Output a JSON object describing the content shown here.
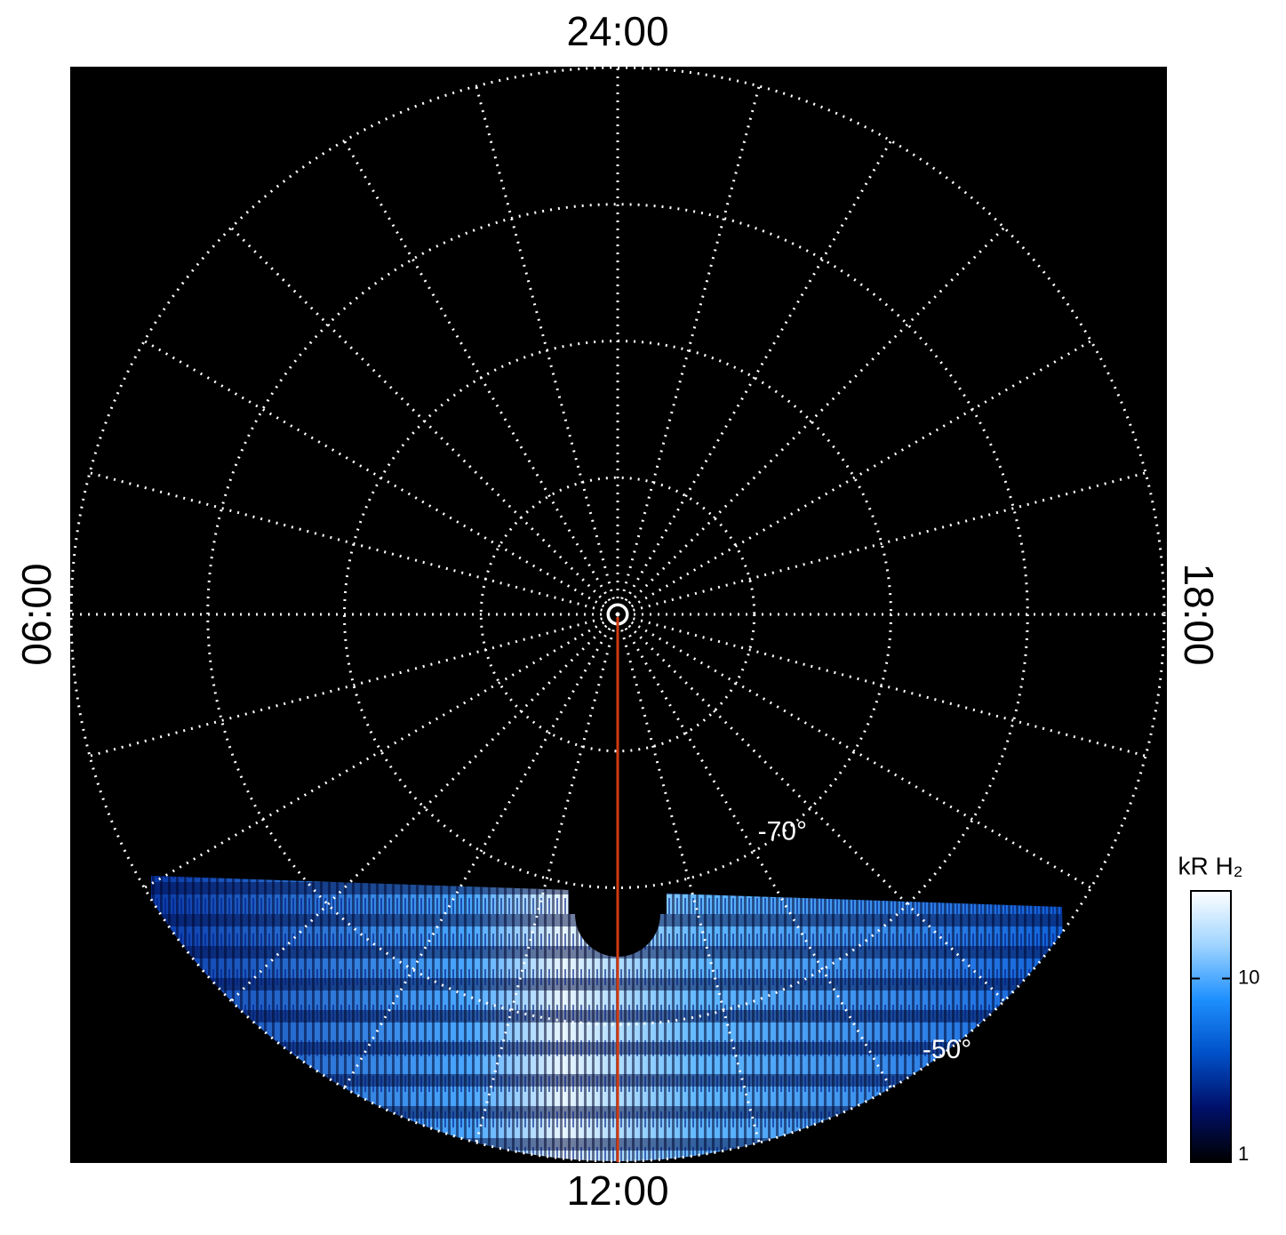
{
  "chart_data": {
    "type": "polar",
    "theta_ticks": [
      {
        "value": 24,
        "label": "24:00"
      },
      {
        "value": 6,
        "label": "06:00"
      },
      {
        "value": 12,
        "label": "12:00"
      },
      {
        "value": 18,
        "label": "18:00"
      }
    ],
    "rlim": [
      -90,
      -50
    ],
    "rgrid": [
      -80,
      -70,
      -60,
      -50
    ],
    "rticks": [
      {
        "value": -70,
        "label": "-70°"
      },
      {
        "value": -50,
        "label": "-50°"
      }
    ],
    "grid_color": "#ffffff",
    "background": "#000000",
    "colorbar": {
      "label": "kR H₂",
      "clim": [
        1,
        30
      ],
      "ticks": [
        1,
        10
      ],
      "log": true,
      "colors": [
        "#000000",
        "#00106a",
        "#0050c8",
        "#1e90ff",
        "#9fd4ff",
        "#ffffff"
      ]
    }
  }
}
